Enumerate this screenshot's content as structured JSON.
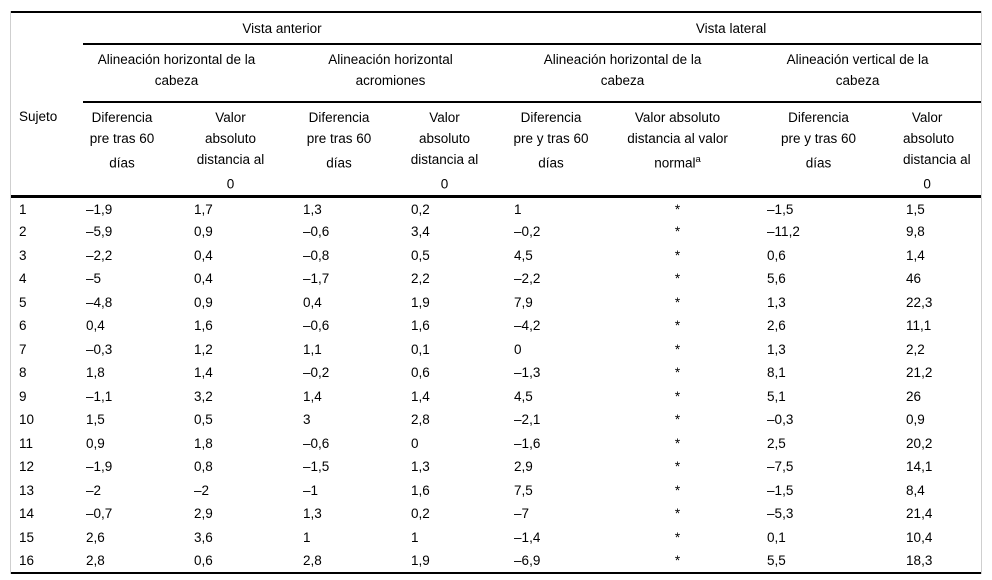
{
  "colors": {
    "rule": "#000000",
    "frame": "#cfcfcf",
    "text": "#000000",
    "background": "#ffffff"
  },
  "table": {
    "row_label_header": "Sujeto",
    "top_groups": [
      {
        "label": "Vista anterior"
      },
      {
        "label": "Vista lateral"
      }
    ],
    "mid_groups": [
      {
        "label": "Alineación horizontal de la\ncabeza"
      },
      {
        "label": "Alineación horizontal\nacromiones"
      },
      {
        "label": "Alineación horizontal de la\ncabeza"
      },
      {
        "label": "Alineación vertical de la\ncabeza"
      }
    ],
    "columns": [
      {
        "label": "Diferencia\npre tras 60\ndías"
      },
      {
        "label": "Valor\nabsoluto\ndistancia al\n0"
      },
      {
        "label": "Diferencia\npre tras 60\ndías"
      },
      {
        "label": "Valor\nabsoluto\ndistancia al\n0"
      },
      {
        "label": "Diferencia\npre y tras 60\ndías"
      },
      {
        "label": "Valor absoluto\ndistancia al valor\nnormal",
        "sup": "a"
      },
      {
        "label": "Diferencia\npre y tras 60\ndías"
      },
      {
        "label": "Valor\nabsoluto\ndistancia al\n0"
      }
    ],
    "rows": [
      [
        "1",
        "–1,9",
        "1,7",
        "1,3",
        "0,2",
        "1",
        "*",
        "–1,5",
        "1,5"
      ],
      [
        "2",
        "–5,9",
        "0,9",
        "–0,6",
        "3,4",
        "–0,2",
        "*",
        "–11,2",
        "9,8"
      ],
      [
        "3",
        "–2,2",
        "0,4",
        "–0,8",
        "0,5",
        "4,5",
        "*",
        "0,6",
        "1,4"
      ],
      [
        "4",
        "–5",
        "0,4",
        "–1,7",
        "2,2",
        "–2,2",
        "*",
        "5,6",
        "46"
      ],
      [
        "5",
        "–4,8",
        "0,9",
        "0,4",
        "1,9",
        "7,9",
        "*",
        "1,3",
        "22,3"
      ],
      [
        "6",
        "0,4",
        "1,6",
        "–0,6",
        "1,6",
        "–4,2",
        "*",
        "2,6",
        "11,1"
      ],
      [
        "7",
        "–0,3",
        "1,2",
        "1,1",
        "0,1",
        "0",
        "*",
        "1,3",
        "2,2"
      ],
      [
        "8",
        "1,8",
        "1,4",
        "–0,2",
        "0,6",
        "–1,3",
        "*",
        "8,1",
        "21,2"
      ],
      [
        "9",
        "–1,1",
        "3,2",
        "1,4",
        "1,4",
        "4,5",
        "*",
        "5,1",
        "26"
      ],
      [
        "10",
        "1,5",
        "0,5",
        "3",
        "2,8",
        "–2,1",
        "*",
        "–0,3",
        "0,9"
      ],
      [
        "11",
        "0,9",
        "1,8",
        "–0,6",
        "0",
        "–1,6",
        "*",
        "2,5",
        "20,2"
      ],
      [
        "12",
        "–1,9",
        "0,8",
        "–1,5",
        "1,3",
        "2,9",
        "*",
        "–7,5",
        "14,1"
      ],
      [
        "13",
        "–2",
        "–2",
        "–1",
        "1,6",
        "7,5",
        "*",
        "–1,5",
        "8,4"
      ],
      [
        "14",
        "–0,7",
        "2,9",
        "1,3",
        "0,2",
        "–7",
        "*",
        "–5,3",
        "21,4"
      ],
      [
        "15",
        "2,6",
        "3,6",
        "1",
        "1",
        "–1,4",
        "*",
        "0,1",
        "10,4"
      ],
      [
        "16",
        "2,8",
        "0,6",
        "2,8",
        "1,9",
        "–6,9",
        "*",
        "5,5",
        "18,3"
      ]
    ]
  }
}
